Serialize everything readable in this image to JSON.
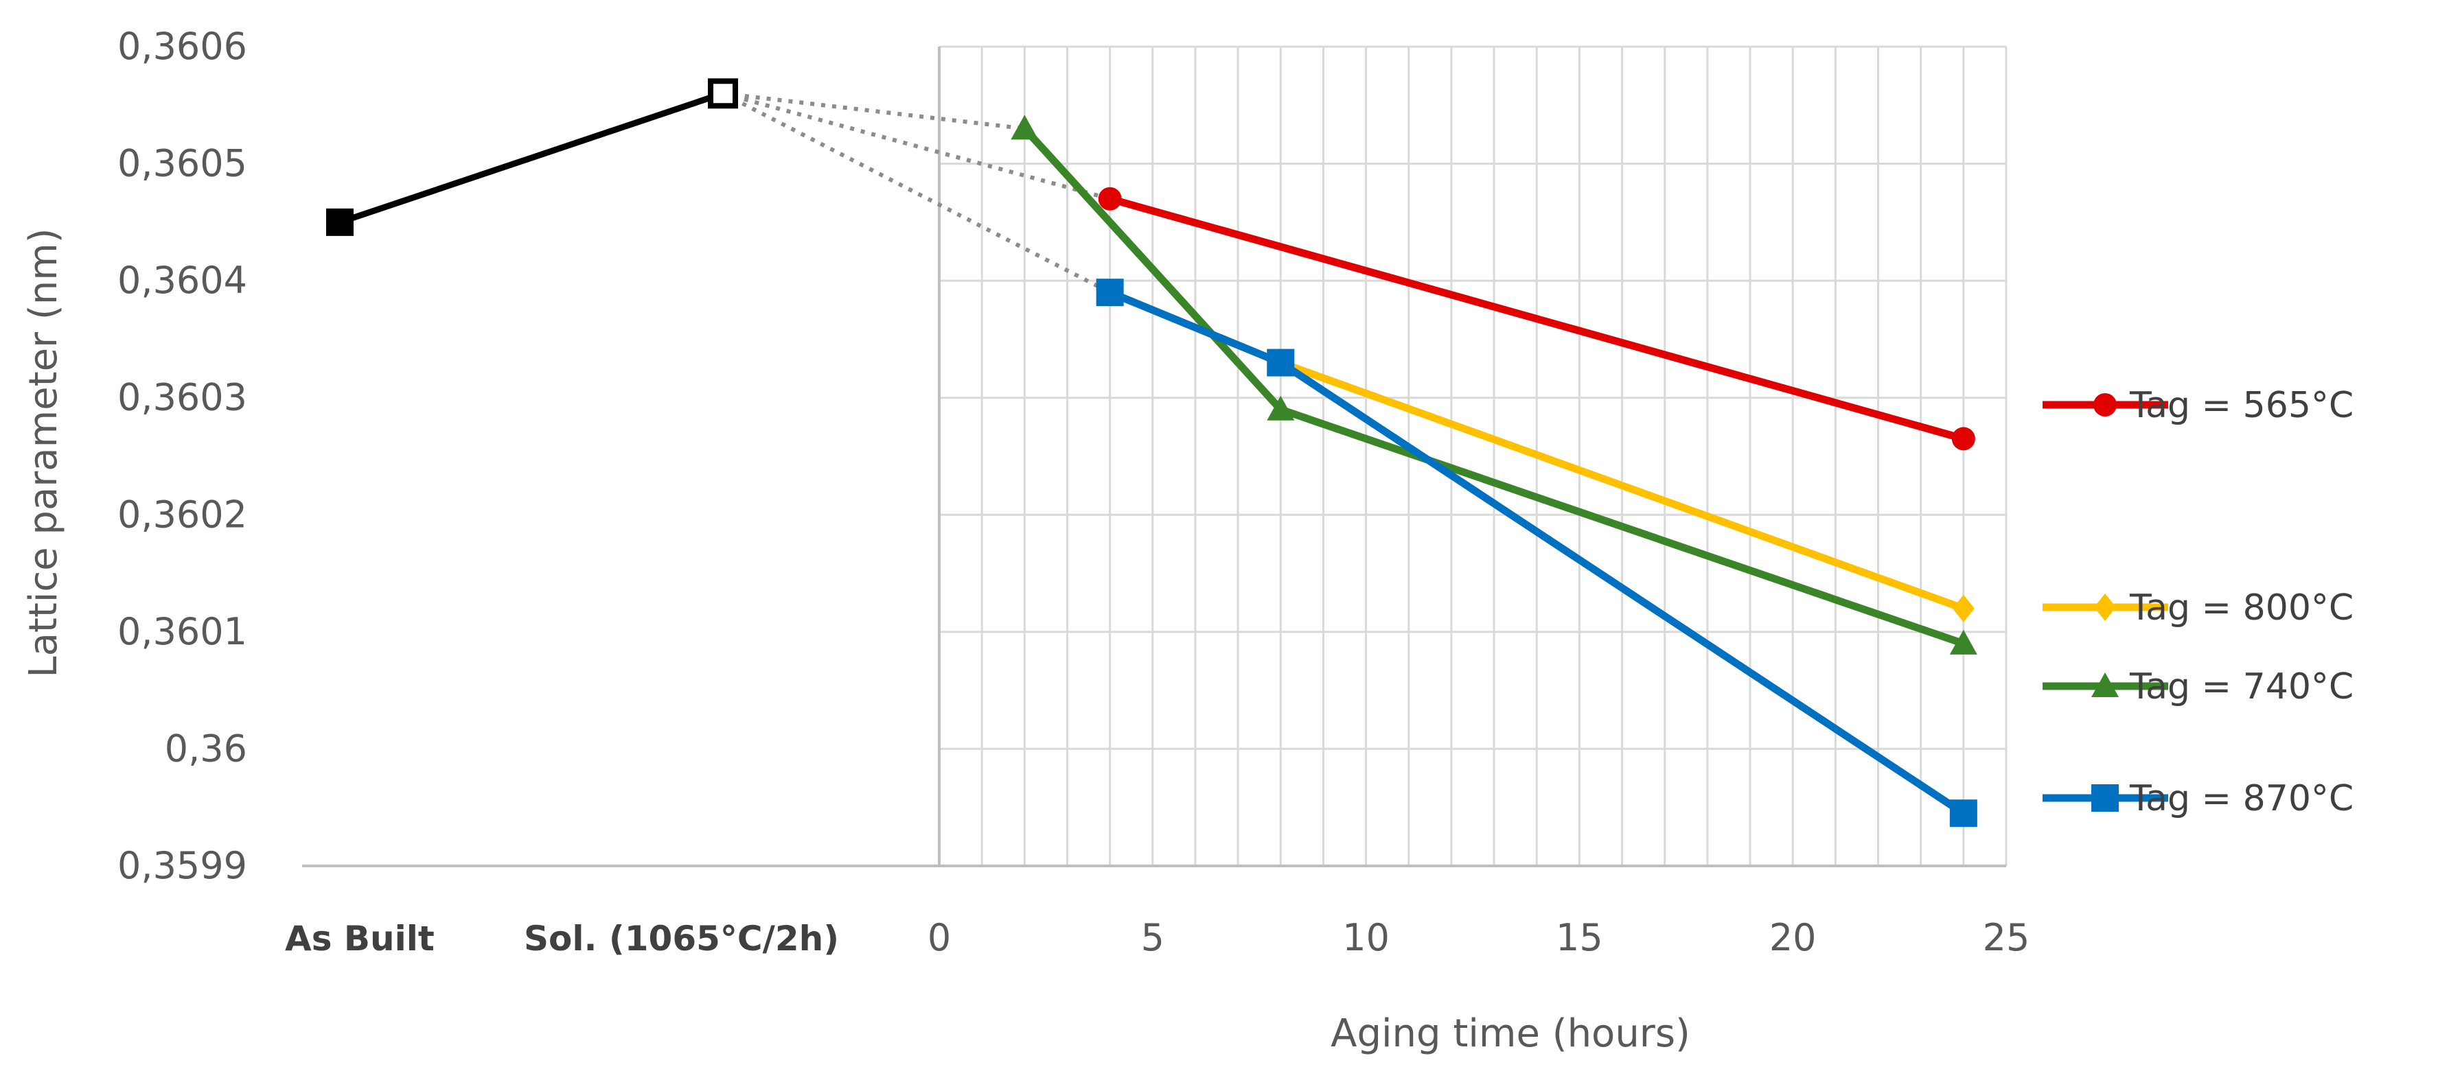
{
  "chart_data": {
    "type": "line",
    "title": "",
    "xlabel": "Aging time (hours)",
    "ylabel": "Lattice parameter (nm)",
    "ylim": [
      0.3599,
      0.3606
    ],
    "xlim": [
      0,
      25
    ],
    "y_ticks": [
      "0,3599",
      "0,36",
      "0,3601",
      "0,3602",
      "0,3603",
      "0,3604",
      "0,3605",
      "0,3606"
    ],
    "y_tick_values": [
      0.3599,
      0.36,
      0.3601,
      0.3602,
      0.3603,
      0.3604,
      0.3605,
      0.3606
    ],
    "x_ticks": [
      "0",
      "5",
      "10",
      "15",
      "20",
      "25"
    ],
    "x_tick_values": [
      0,
      5,
      10,
      15,
      20,
      25
    ],
    "categories": [
      "As Built",
      "Sol. (1065°C/2h)"
    ],
    "category_series": {
      "name": "As Built → Sol.",
      "color": "#000000",
      "values": [
        0.36045,
        0.36056
      ]
    },
    "connector_lines": [
      {
        "to_series": 1,
        "to_x": 2,
        "to_y": 0.36053
      },
      {
        "to_series": 0,
        "to_x": 4,
        "to_y": 0.36047
      },
      {
        "to_series": 3,
        "to_x": 4,
        "to_y": 0.36039
      }
    ],
    "series": [
      {
        "name": "Tag = 565°C",
        "color": "#E00000",
        "marker": "circle",
        "x": [
          4,
          24
        ],
        "y": [
          0.36047,
          0.360265
        ]
      },
      {
        "name": "Tag = 740°C",
        "color": "#3A8527",
        "marker": "triangle",
        "x": [
          2,
          8,
          24
        ],
        "y": [
          0.36053,
          0.36029,
          0.36009
        ]
      },
      {
        "name": "Tag = 800°C",
        "color": "#FFC000",
        "marker": "diamond",
        "x": [
          4,
          8,
          24
        ],
        "y": [
          0.36039,
          0.36033,
          0.36012
        ]
      },
      {
        "name": "Tag = 870°C",
        "color": "#0070C0",
        "marker": "square",
        "x": [
          4,
          8,
          24
        ],
        "y": [
          0.36039,
          0.36033,
          0.359945
        ]
      }
    ],
    "legend": [
      {
        "series": 0,
        "label": "Tag = 565°C"
      },
      {
        "series": 2,
        "label": "Tag = 800°C"
      },
      {
        "series": 1,
        "label": "Tag = 740°C"
      },
      {
        "series": 3,
        "label": "Tag = 870°C"
      }
    ],
    "grid": true,
    "legend_position": "right"
  }
}
